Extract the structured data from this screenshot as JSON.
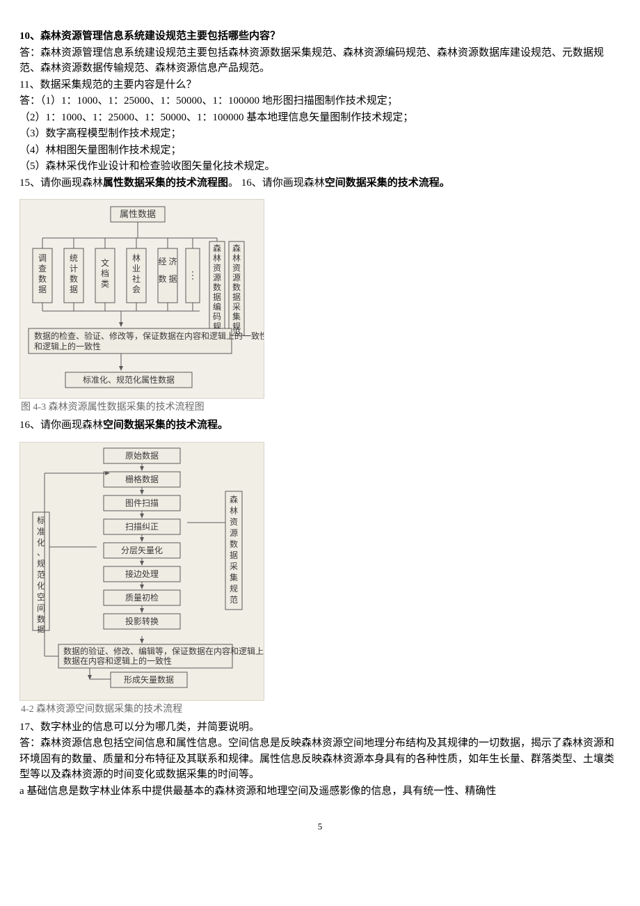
{
  "q10": {
    "title": "10、森林资源管理信息系统建设规范主要包括哪些内容？",
    "answer": "答：森林资源管理信息系统建设规范主要包括森林资源数据采集规范、森林资源编码规范、森林资源数据库建设规范、元数据规范、森林资源数据传输规范、森林资源信息产品规范。"
  },
  "q11": {
    "title": "11、数据采集规范的主要内容是什么？",
    "a1": "答：（1）1：1000、1：25000、1：50000、1：100000 地形图扫描图制作技术规定；",
    "a2": "（2）1：1000、1：25000、1：50000、1：100000 基本地理信息矢量图制作技术规定；",
    "a3": "（3）数字高程模型制作技术规定；",
    "a4": "（4）林相图矢量图制作技术规定；",
    "a5": "（5）森林采伐作业设计和检查验收图矢量化技术规定。"
  },
  "q15": {
    "prefix": "15、请你画现森林",
    "bold1": "属性数据采集的技术流程图",
    "gap": "。  16、请你画现森林",
    "bold2": "空间数据采集的技术流程。",
    "caption": "图 4-3  森林资源属性数据采集的技术流程图"
  },
  "q16": {
    "prefix": "16、请你画现森林",
    "bold": "空间数据采集的技术流程。",
    "caption": "4-2   森林资源空间数据采集的技术流程"
  },
  "q17": {
    "title": "17、数字林业的信息可以分为哪几类，并简要说明。",
    "a1": "答：森林资源信息包括空间信息和属性信息。空间信息是反映森林资源空间地理分布结构及其规律的一切数据，揭示了森林资源和环境固有的数量、质量和分布特征及其联系和规律。属性信息反映森林资源本身具有的各种性质，如年生长量、群落类型、土壤类型等以及森林资源的时间变化或数据采集的时间等。",
    "a2": "a 基础信息是数字林业体系中提供最基本的森林资源和地理空间及遥感影像的信息，具有统一性、精确性"
  },
  "dia1": {
    "top": "属性数据",
    "c1": "调查数据",
    "c2": "统计数据",
    "c3": "文档类",
    "c4": "林业社会",
    "c5a": "经 济",
    "c5b": "数 据",
    "c6": "⋮",
    "right": "森林资源数据编码规范",
    "right2": "森林资源数据采集规范",
    "mid": "数据的检查、验证、修改等，保证数据在内容和逻辑上的一致性",
    "bottom": "标准化、规范化属性数据"
  },
  "dia2": {
    "steps": [
      "原始数据",
      "栅格数据",
      "图件扫描",
      "扫描纠正",
      "分层矢量化",
      "接边处理",
      "质量初检",
      "投影转换"
    ],
    "left": "标准化、规范化空间数据",
    "right": "森林资源数据采集规范",
    "verify": "数据的验证、修改、编辑等，保证数据在内容和逻辑上的一致性",
    "bottom": "形成矢量数据"
  },
  "page": "5"
}
